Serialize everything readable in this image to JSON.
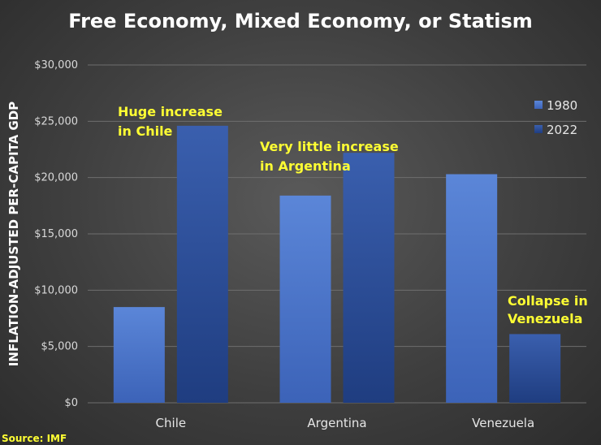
{
  "chart_data": {
    "type": "bar",
    "title": "Free Economy, Mixed Economy, or Statism",
    "ylabel": "INFLATION-ADJUSTED PER-CAPITA GDP",
    "xlabel": "",
    "categories": [
      "Chile",
      "Argentina",
      "Venezuela"
    ],
    "series": [
      {
        "name": "1980",
        "values": [
          8500,
          18400,
          20300
        ],
        "color": "#4a72c8"
      },
      {
        "name": "2022",
        "values": [
          24600,
          22200,
          6100
        ],
        "color": "#2d4f96"
      }
    ],
    "ylim": [
      0,
      30000
    ],
    "yticks": [
      0,
      5000,
      10000,
      15000,
      20000,
      25000,
      30000
    ],
    "ytick_labels": [
      "$0",
      "$5,000",
      "$10,000",
      "$15,000",
      "$20,000",
      "$25,000",
      "$30,000"
    ],
    "grid": true,
    "legend_position": "top-right",
    "annotations": [
      {
        "lines": [
          "Huge increase",
          "in Chile"
        ],
        "category": "Chile"
      },
      {
        "lines": [
          "Very little increase",
          "in Argentina"
        ],
        "category": "Argentina"
      },
      {
        "lines": [
          "Collapse in",
          "Venezuela"
        ],
        "category": "Venezuela"
      }
    ],
    "source": "Source: IMF"
  }
}
